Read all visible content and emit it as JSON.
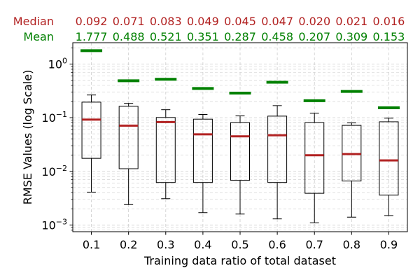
{
  "chart_data": {
    "type": "box",
    "xlabel": "Training data ratio of total dataset",
    "ylabel": "RMSE Values (log Scale)",
    "yscale": "log",
    "ylim": [
      0.00075,
      2.5
    ],
    "grid": true,
    "categories": [
      "0.1",
      "0.2",
      "0.3",
      "0.4",
      "0.5",
      "0.6",
      "0.7",
      "0.8",
      "0.9"
    ],
    "yticks": [
      {
        "value": 0.001,
        "base": "10",
        "exp": "−3"
      },
      {
        "value": 0.01,
        "base": "10",
        "exp": "−2"
      },
      {
        "value": 0.1,
        "base": "10",
        "exp": "−1"
      },
      {
        "value": 1,
        "base": "10",
        "exp": "0"
      }
    ],
    "boxes": [
      {
        "whisker_low": 0.0041,
        "q1": 0.0175,
        "median": 0.092,
        "q3": 0.195,
        "whisker_high": 0.265,
        "mean": 1.777
      },
      {
        "whisker_low": 0.0024,
        "q1": 0.0112,
        "median": 0.071,
        "q3": 0.163,
        "whisker_high": 0.185,
        "mean": 0.488
      },
      {
        "whisker_low": 0.0031,
        "q1": 0.0062,
        "median": 0.083,
        "q3": 0.101,
        "whisker_high": 0.141,
        "mean": 0.521
      },
      {
        "whisker_low": 0.0017,
        "q1": 0.0062,
        "median": 0.049,
        "q3": 0.094,
        "whisker_high": 0.115,
        "mean": 0.351
      },
      {
        "whisker_low": 0.0016,
        "q1": 0.0068,
        "median": 0.045,
        "q3": 0.081,
        "whisker_high": 0.108,
        "mean": 0.287
      },
      {
        "whisker_low": 0.0013,
        "q1": 0.0062,
        "median": 0.047,
        "q3": 0.107,
        "whisker_high": 0.168,
        "mean": 0.458
      },
      {
        "whisker_low": 0.0011,
        "q1": 0.0039,
        "median": 0.02,
        "q3": 0.081,
        "whisker_high": 0.121,
        "mean": 0.207
      },
      {
        "whisker_low": 0.0014,
        "q1": 0.0066,
        "median": 0.021,
        "q3": 0.072,
        "whisker_high": 0.08,
        "mean": 0.309
      },
      {
        "whisker_low": 0.0015,
        "q1": 0.0036,
        "median": 0.016,
        "q3": 0.084,
        "whisker_high": 0.098,
        "mean": 0.153
      }
    ],
    "median_row": {
      "label": "Median",
      "values": [
        "0.092",
        "0.071",
        "0.083",
        "0.049",
        "0.045",
        "0.047",
        "0.020",
        "0.021",
        "0.016"
      ],
      "color": "#b22222"
    },
    "mean_row": {
      "label": "Mean",
      "values": [
        "1.777",
        "0.488",
        "0.521",
        "0.351",
        "0.287",
        "0.458",
        "0.207",
        "0.309",
        "0.153"
      ],
      "color": "#008000"
    },
    "colors": {
      "median_line": "#b22222",
      "mean_line": "#008000",
      "box": "#000000",
      "grid": "#cccccc"
    }
  }
}
